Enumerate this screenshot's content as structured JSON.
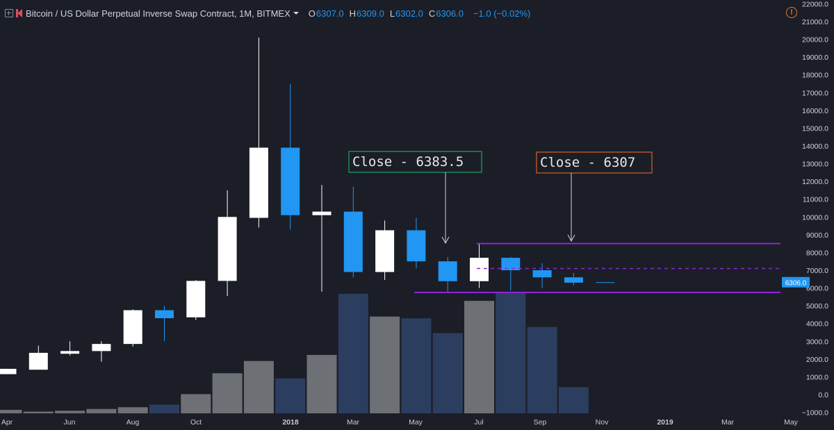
{
  "header": {
    "symbol_title": "Bitcoin / US Dollar Perpetual Inverse Swap Contract, 1M, BITMEX",
    "ohlc": {
      "open_label": "O",
      "open_value": "6307.0",
      "high_label": "H",
      "high_value": "6309.0",
      "low_label": "L",
      "low_value": "6302.0",
      "close_label": "C",
      "close_value": "6306.0",
      "change": "−1.0 (−0.02%)"
    }
  },
  "colors": {
    "background": "#1b1e27",
    "up_candle": "#ffffff",
    "down_candle": "#2196f3",
    "volume_up": "#6d7075",
    "volume_down": "#2c3e5f",
    "range_line": "#8e24d8",
    "annotation_green": "#1aa567",
    "annotation_orange": "#d4622c"
  },
  "price_axis": {
    "ticks": [
      "22000.0",
      "21000.0",
      "20000.0",
      "19000.0",
      "18000.0",
      "17000.0",
      "16000.0",
      "15000.0",
      "14000.0",
      "13000.0",
      "12000.0",
      "11000.0",
      "10000.0",
      "9000.0",
      "8000.0",
      "7000.0",
      "6000.0",
      "5000.0",
      "4000.0",
      "3000.0",
      "2000.0",
      "1000.0",
      "0.0",
      "−1000.0"
    ],
    "current_price_tag": "6306.0"
  },
  "time_axis": {
    "labels": [
      "Apr",
      "Jun",
      "Aug",
      "Oct",
      "2018",
      "Mar",
      "May",
      "Jul",
      "Sep",
      "Nov",
      "2019",
      "Mar",
      "May"
    ]
  },
  "annotations": [
    {
      "text": "Close - 6383.5",
      "color": "green"
    },
    {
      "text": "Close - 6307",
      "color": "orange"
    }
  ],
  "chart_data": {
    "type": "candlestick",
    "interval": "1M",
    "candles": [
      {
        "o": 1150,
        "h": 1450,
        "l": 1150,
        "c": 1450
      },
      {
        "o": 1400,
        "h": 2750,
        "l": 1400,
        "c": 2350
      },
      {
        "o": 2300,
        "h": 3000,
        "l": 2200,
        "c": 2450
      },
      {
        "o": 2450,
        "h": 3000,
        "l": 1850,
        "c": 2850
      },
      {
        "o": 2850,
        "h": 4800,
        "l": 2700,
        "c": 4750
      },
      {
        "o": 4750,
        "h": 5000,
        "l": 3000,
        "c": 4300
      },
      {
        "o": 4350,
        "h": 6450,
        "l": 4200,
        "c": 6400
      },
      {
        "o": 6400,
        "h": 11500,
        "l": 5550,
        "c": 10000
      },
      {
        "o": 9950,
        "h": 20100,
        "l": 9400,
        "c": 13900
      },
      {
        "o": 13900,
        "h": 17500,
        "l": 9300,
        "c": 10100
      },
      {
        "o": 10100,
        "h": 11800,
        "l": 5800,
        "c": 10300
      },
      {
        "o": 10300,
        "h": 11700,
        "l": 6600,
        "c": 6900
      },
      {
        "o": 6900,
        "h": 9800,
        "l": 6450,
        "c": 9250
      },
      {
        "o": 9250,
        "h": 9950,
        "l": 7100,
        "c": 7500
      },
      {
        "o": 7500,
        "h": 7750,
        "l": 5800,
        "c": 6383.5
      },
      {
        "o": 6383.5,
        "h": 8500,
        "l": 6000,
        "c": 7700
      },
      {
        "o": 7700,
        "h": 7750,
        "l": 5850,
        "c": 7000
      },
      {
        "o": 7000,
        "h": 7400,
        "l": 6000,
        "c": 6600
      },
      {
        "o": 6600,
        "h": 6850,
        "l": 6150,
        "c": 6300
      },
      {
        "o": 6307,
        "h": 6309,
        "l": 6302,
        "c": 6306
      }
    ],
    "volumes": [
      {
        "v": 200,
        "up": true
      },
      {
        "v": 100,
        "up": true
      },
      {
        "v": 150,
        "up": true
      },
      {
        "v": 250,
        "up": true
      },
      {
        "v": 350,
        "up": true
      },
      {
        "v": 500,
        "up": false
      },
      {
        "v": 1100,
        "up": true
      },
      {
        "v": 2300,
        "up": true
      },
      {
        "v": 3000,
        "up": true
      },
      {
        "v": 2000,
        "up": false
      },
      {
        "v": 3350,
        "up": true
      },
      {
        "v": 6850,
        "up": false
      },
      {
        "v": 5550,
        "up": true
      },
      {
        "v": 5450,
        "up": false
      },
      {
        "v": 4600,
        "up": false
      },
      {
        "v": 6450,
        "up": true
      },
      {
        "v": 6900,
        "up": false
      },
      {
        "v": 4950,
        "up": false
      },
      {
        "v": 1500,
        "up": false
      },
      {
        "v": 0,
        "up": false
      }
    ],
    "range_high": 8500,
    "range_low": 5750,
    "range_mid": 7100,
    "last_price": 6306
  }
}
